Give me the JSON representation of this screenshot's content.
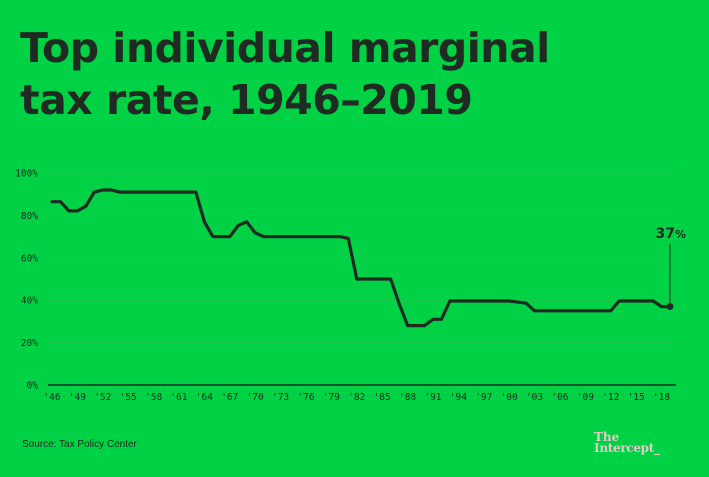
{
  "title_lines": [
    "Top individual marginal",
    "tax rate, 1946–2019"
  ],
  "source": "Source: Tax Policy Center",
  "logo": {
    "line1": "The",
    "line2": "Intercept_"
  },
  "colors": {
    "background": "#00d145",
    "line": "#1f2a22",
    "grid": "#1fc74e",
    "text": "#1f2a22"
  },
  "chart_data": {
    "type": "line",
    "title": "Top individual marginal tax rate, 1946–2019",
    "xlabel": "",
    "ylabel": "",
    "xlim": [
      1946,
      2019
    ],
    "ylim": [
      0,
      100
    ],
    "grid": true,
    "y_ticks": [
      0,
      20,
      40,
      60,
      80,
      100
    ],
    "y_tick_labels": [
      "0%",
      "20%",
      "40%",
      "60%",
      "80%",
      "100%"
    ],
    "x_ticks": [
      1946,
      1949,
      1952,
      1955,
      1958,
      1961,
      1964,
      1967,
      1970,
      1973,
      1976,
      1979,
      1982,
      1985,
      1988,
      1991,
      1994,
      1997,
      2000,
      2003,
      2006,
      2009,
      2012,
      2015,
      2018
    ],
    "x_tick_labels": [
      "'46",
      "'49",
      "'52",
      "'55",
      "'58",
      "'61",
      "'64",
      "'67",
      "'70",
      "'73",
      "'76",
      "'79",
      "'82",
      "'85",
      "'88",
      "'91",
      "'94",
      "'97",
      "'00",
      "'03",
      "'06",
      "'09",
      "'12",
      "'15",
      "'18"
    ],
    "annotation": {
      "x": 2019,
      "y": 37,
      "value": "37",
      "unit": "%"
    },
    "series": [
      {
        "x": [
          1946,
          1947,
          1948,
          1949,
          1950,
          1951,
          1952,
          1953,
          1954,
          1955,
          1956,
          1957,
          1958,
          1959,
          1960,
          1961,
          1962,
          1963,
          1964,
          1965,
          1966,
          1967,
          1968,
          1969,
          1970,
          1971,
          1972,
          1973,
          1974,
          1975,
          1976,
          1977,
          1978,
          1979,
          1980,
          1981,
          1982,
          1983,
          1984,
          1985,
          1986,
          1987,
          1988,
          1989,
          1990,
          1991,
          1992,
          1993,
          1994,
          1995,
          1996,
          1997,
          1998,
          1999,
          2000,
          2001,
          2002,
          2003,
          2004,
          2005,
          2006,
          2007,
          2008,
          2009,
          2010,
          2011,
          2012,
          2013,
          2014,
          2015,
          2016,
          2017,
          2018,
          2019
        ],
        "values": [
          86.45,
          86.45,
          82.13,
          82.13,
          84.36,
          91,
          92,
          92,
          91,
          91,
          91,
          91,
          91,
          91,
          91,
          91,
          91,
          91,
          77,
          70,
          70,
          70,
          75.25,
          77,
          71.75,
          70,
          70,
          70,
          70,
          70,
          70,
          70,
          70,
          70,
          70,
          69.13,
          50,
          50,
          50,
          50,
          50,
          38.5,
          28,
          28,
          28,
          31,
          31,
          39.6,
          39.6,
          39.6,
          39.6,
          39.6,
          39.6,
          39.6,
          39.6,
          39.1,
          38.6,
          35,
          35,
          35,
          35,
          35,
          35,
          35,
          35,
          35,
          35,
          39.6,
          39.6,
          39.6,
          39.6,
          39.6,
          37,
          37
        ]
      }
    ]
  }
}
